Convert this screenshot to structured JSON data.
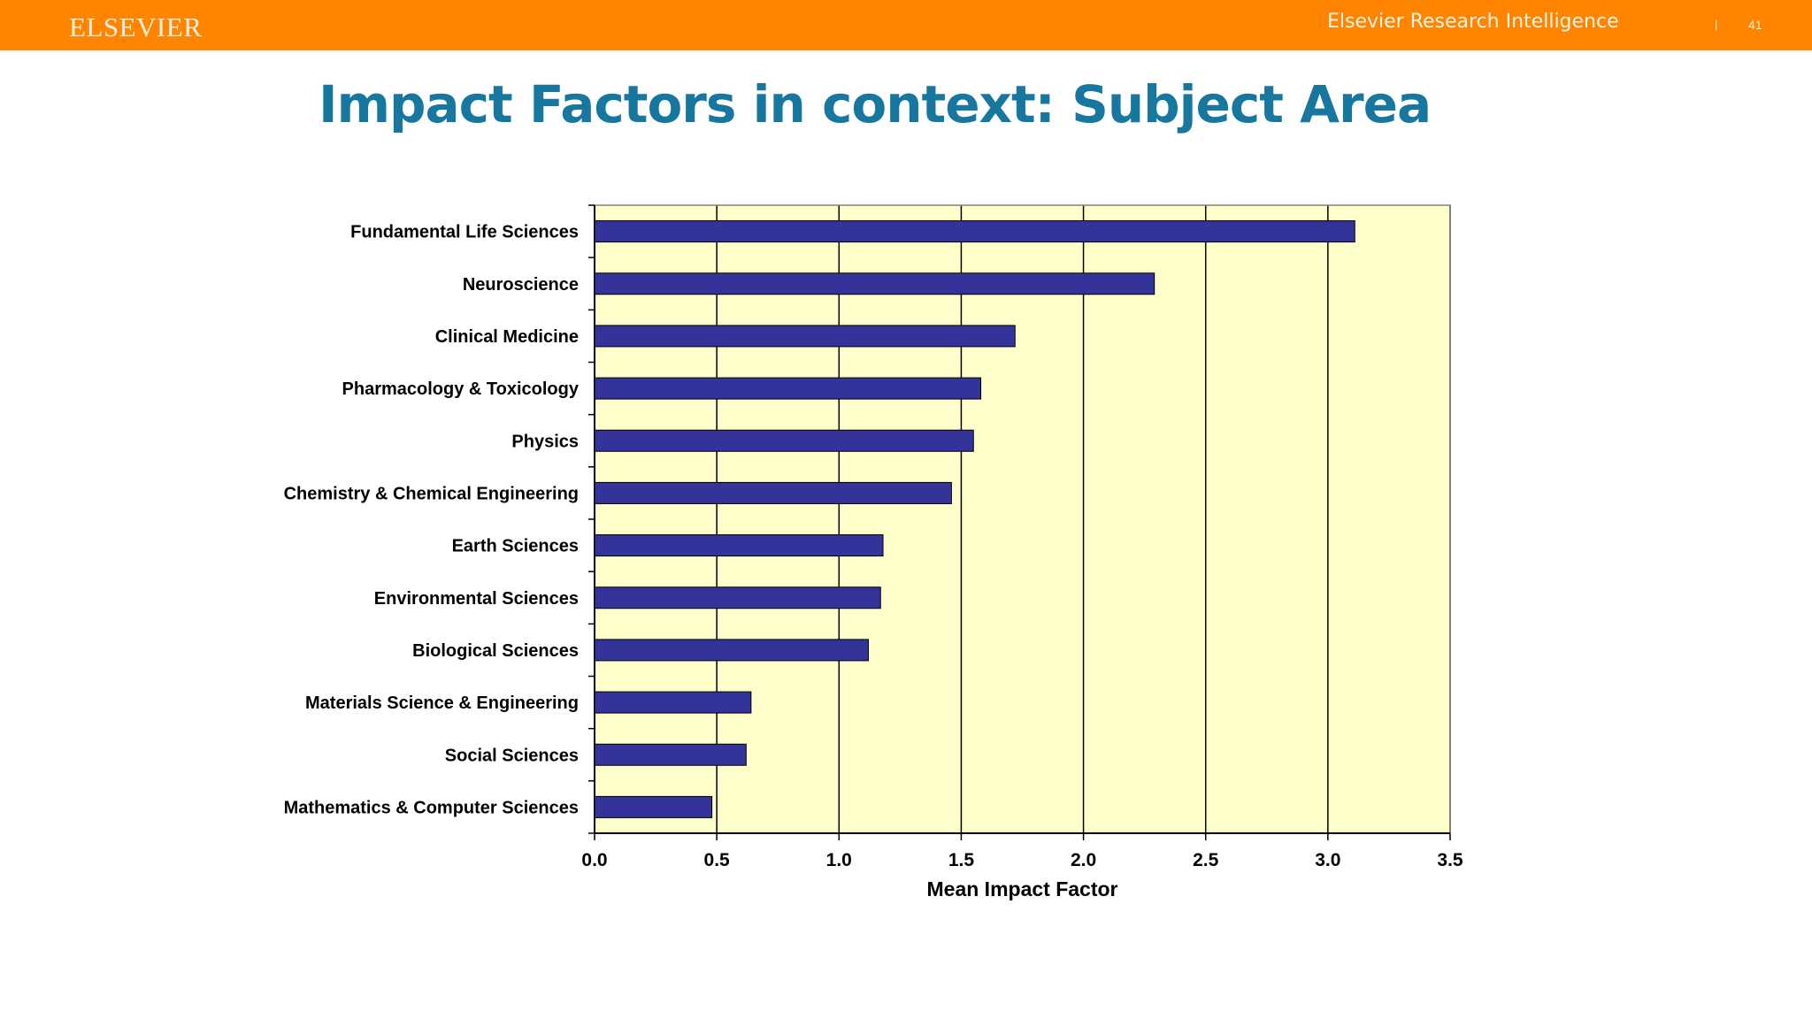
{
  "header": {
    "logo": "ELSEVIER",
    "brand": "Elsevier Research Intelligence",
    "separator": "|",
    "page_number": "41",
    "bar_color": "#ff8400"
  },
  "slide": {
    "title": "Impact Factors in context: Subject Area"
  },
  "chart_data": {
    "type": "bar",
    "orientation": "horizontal",
    "categories": [
      "Fundamental Life Sciences",
      "Neuroscience",
      "Clinical Medicine",
      "Pharmacology & Toxicology",
      "Physics",
      "Chemistry & Chemical Engineering",
      "Earth Sciences",
      "Environmental Sciences",
      "Biological Sciences",
      "Materials Science & Engineering",
      "Social Sciences",
      "Mathematics & Computer Sciences"
    ],
    "values": [
      3.11,
      2.29,
      1.72,
      1.58,
      1.55,
      1.46,
      1.18,
      1.17,
      1.12,
      0.64,
      0.62,
      0.48
    ],
    "xlabel": "Mean Impact Factor",
    "xlim": [
      0,
      3.5
    ],
    "xticks": [
      "0.0",
      "0.5",
      "1.0",
      "1.5",
      "2.0",
      "2.5",
      "3.0",
      "3.5"
    ],
    "grid": "vertical",
    "bar_color": "#333399",
    "plot_background": "#ffffcc"
  }
}
